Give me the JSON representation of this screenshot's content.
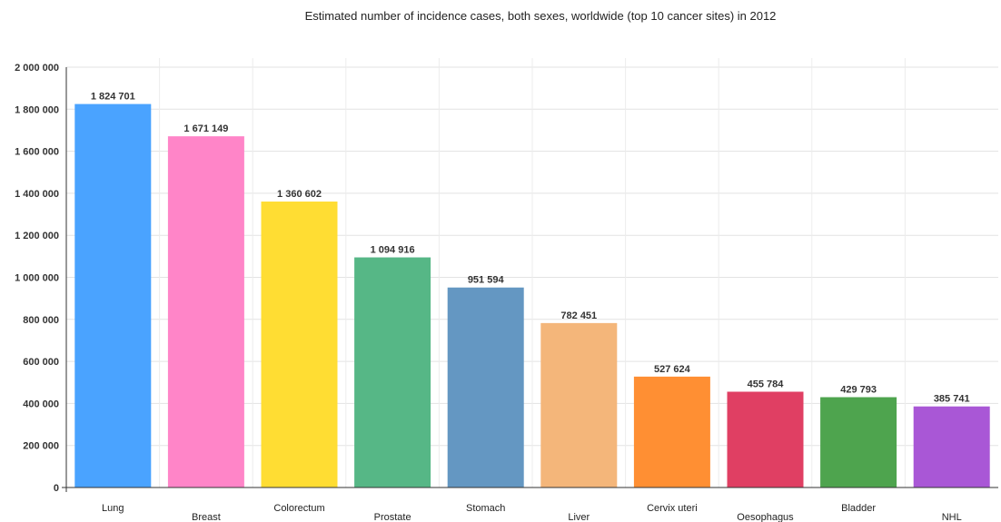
{
  "chart_data": {
    "type": "bar",
    "title": "Estimated number of incidence cases, both sexes, worldwide (top 10 cancer sites) in 2012",
    "xlabel": "",
    "ylabel": "",
    "ylim": [
      0,
      2000000
    ],
    "yticks": [
      0,
      200000,
      400000,
      600000,
      800000,
      1000000,
      1200000,
      1400000,
      1600000,
      1800000,
      2000000
    ],
    "ytick_labels": [
      "0",
      "200 000",
      "400 000",
      "600 000",
      "800 000",
      "1 000 000",
      "1 200 000",
      "1 400 000",
      "1 600 000",
      "1 800 000",
      "2 000 000"
    ],
    "categories": [
      "Lung",
      "Breast",
      "Colorectum",
      "Prostate",
      "Stomach",
      "Liver",
      "Cervix uteri",
      "Oesophagus",
      "Bladder",
      "NHL"
    ],
    "values": [
      1824701,
      1671149,
      1360602,
      1094916,
      951594,
      782451,
      527624,
      455784,
      429793,
      385741
    ],
    "value_labels": [
      "1 824 701",
      "1 671 149",
      "1 360 602",
      "1 094 916",
      "951 594",
      "782 451",
      "527 624",
      "455 784",
      "429 793",
      "385 741"
    ],
    "colors": [
      "#4aa3ff",
      "#ff85c8",
      "#ffdd33",
      "#56b786",
      "#6497c2",
      "#f4b67a",
      "#ff8f33",
      "#e03f63",
      "#4ea44e",
      "#a957d6"
    ],
    "grid": true,
    "legend": "none"
  }
}
